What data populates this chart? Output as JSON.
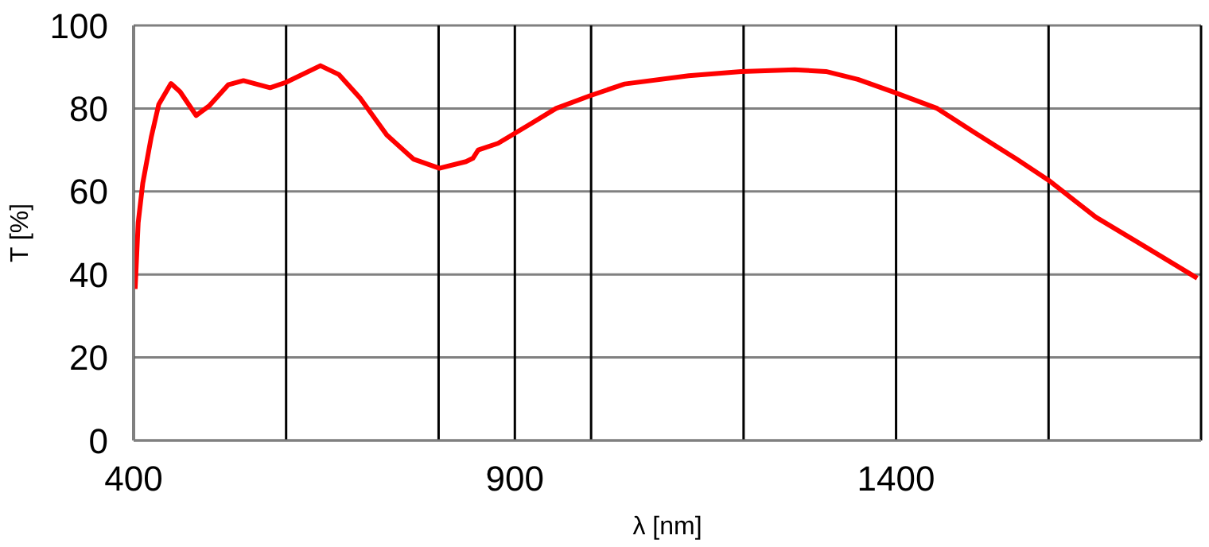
{
  "chart_data": {
    "type": "line",
    "xlabel": "λ [nm]",
    "ylabel": "T [%]",
    "xlim": [
      400,
      1800
    ],
    "ylim": [
      0,
      100
    ],
    "xticks": [
      400,
      {
        "value": 600,
        "label": null
      },
      {
        "value": 800,
        "label": null
      },
      900,
      {
        "value": 1000,
        "label": null
      },
      {
        "value": 1200,
        "label": null
      },
      1400,
      {
        "value": 1600,
        "label": null
      },
      {
        "value": 1800,
        "label": null
      }
    ],
    "yticks": [
      0,
      20,
      40,
      60,
      80,
      100
    ],
    "grid": true,
    "marker": "none",
    "line_style": "solid",
    "series": [
      {
        "color": "#ff0000",
        "x": [
          402,
          406,
          412,
          423,
          433,
          449,
          461,
          482,
          499,
          524,
          544,
          579,
          600,
          645,
          669,
          697,
          732,
          767,
          801,
          836,
          845,
          852,
          878,
          919,
          954,
          999,
          1044,
          1128,
          1197,
          1267,
          1308,
          1350,
          1399,
          1454,
          1503,
          1558,
          1600,
          1662,
          1732,
          1795
        ],
        "values": [
          36.5,
          52.5,
          62,
          73,
          81,
          86,
          84,
          78.3,
          80.6,
          85.7,
          86.7,
          85,
          86.3,
          90.3,
          88.2,
          82.5,
          73.6,
          67.8,
          65.6,
          67.2,
          68,
          70,
          71.6,
          76.1,
          80,
          83.1,
          85.9,
          87.9,
          88.9,
          89.3,
          88.9,
          87,
          83.8,
          80,
          74.2,
          67.8,
          62.7,
          53.8,
          46.1,
          39.1
        ]
      }
    ]
  }
}
